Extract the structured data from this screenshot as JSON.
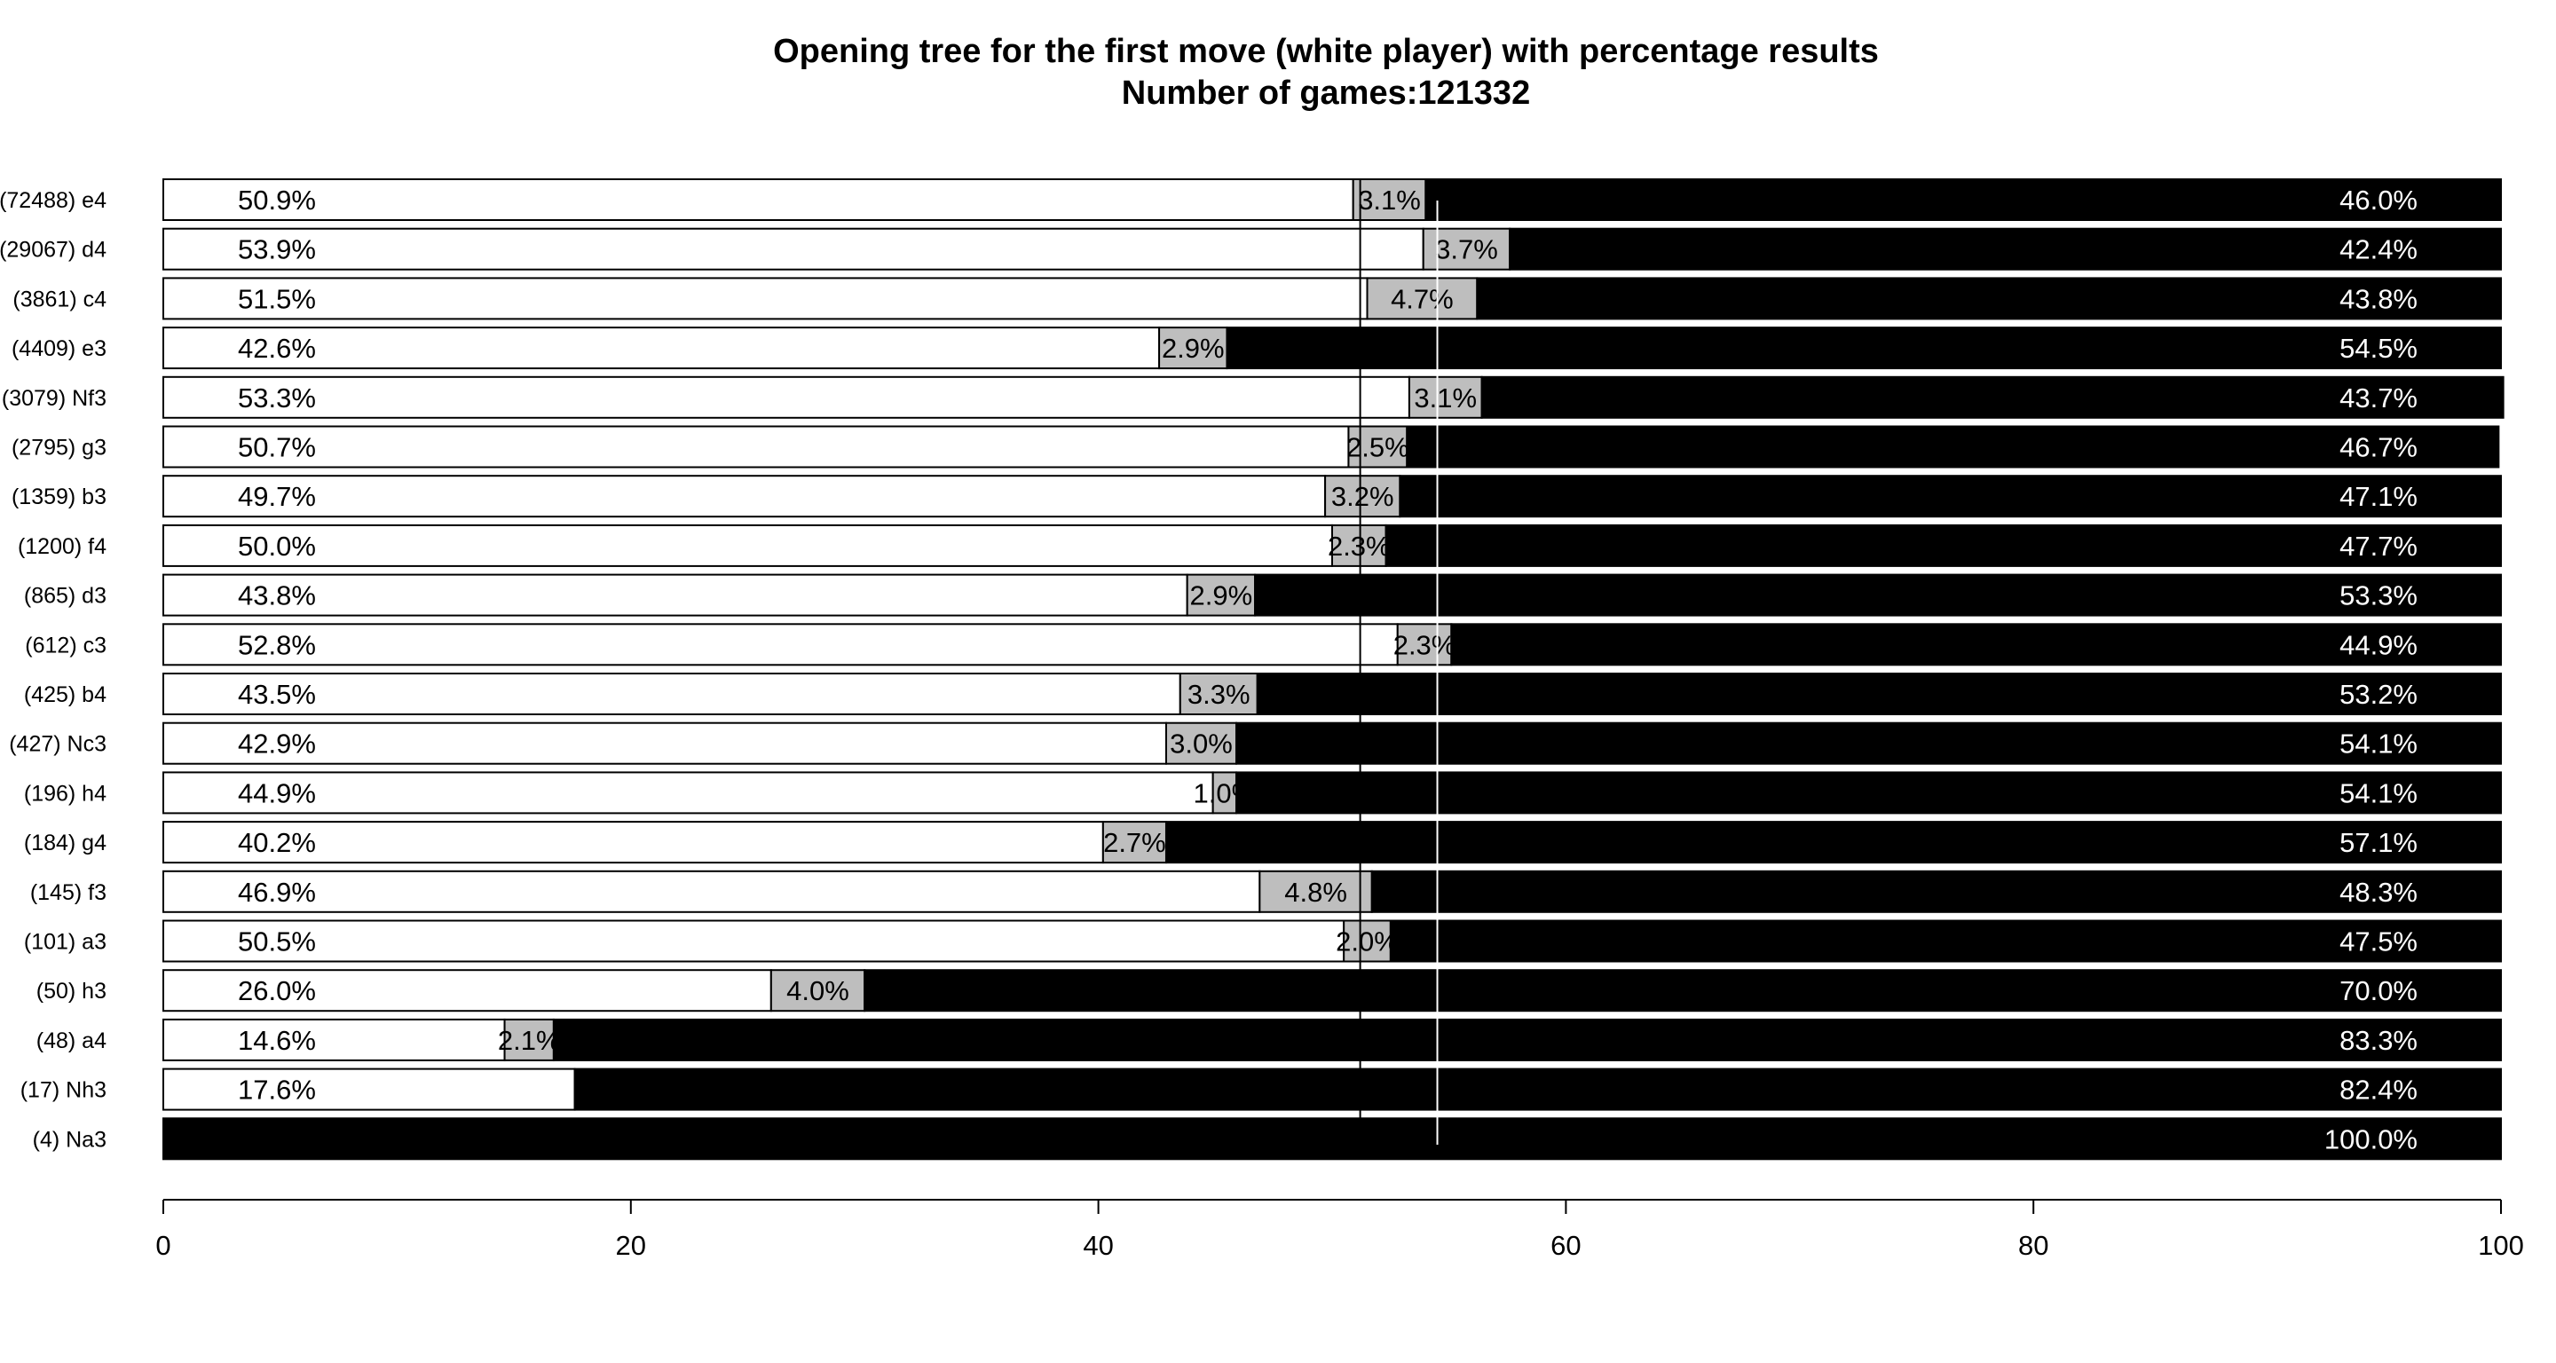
{
  "chart_data": {
    "type": "bar",
    "orientation": "horizontal",
    "stacked": true,
    "title": "Opening tree for the first move (white player) with percentage results",
    "subtitle": "Number of games:121332",
    "xlim": [
      0,
      100
    ],
    "xticks": [
      0,
      20,
      40,
      60,
      80,
      100
    ],
    "grid": false,
    "categories": [
      "(72488) e4",
      "(29067) d4",
      "(3861) c4",
      "(4409) e3",
      "(3079) Nf3",
      "(2795) g3",
      "(1359) b3",
      "(1200) f4",
      "(865) d3",
      "(612) c3",
      "(425) b4",
      "(427) Nc3",
      "(196) h4",
      "(184) g4",
      "(145) f3",
      "(101) a3",
      "(50) h3",
      "(48) a4",
      "(17) Nh3",
      "(4) Na3"
    ],
    "series": [
      {
        "color": "#ffffff",
        "values": [
          50.9,
          53.9,
          51.5,
          42.6,
          53.3,
          50.7,
          49.7,
          50.0,
          43.8,
          52.8,
          43.5,
          42.9,
          44.9,
          40.2,
          46.9,
          50.5,
          26.0,
          14.6,
          17.6,
          0
        ],
        "labels": [
          "50.9%",
          "53.9%",
          "51.5%",
          "42.6%",
          "53.3%",
          "50.7%",
          "49.7%",
          "50.0%",
          "43.8%",
          "52.8%",
          "43.5%",
          "42.9%",
          "44.9%",
          "40.2%",
          "46.9%",
          "50.5%",
          "26.0%",
          "14.6%",
          "17.6%",
          ""
        ]
      },
      {
        "color": "#bebebe",
        "values": [
          3.1,
          3.7,
          4.7,
          2.9,
          3.1,
          2.5,
          3.2,
          2.3,
          2.9,
          2.3,
          3.3,
          3.0,
          1.0,
          2.7,
          4.8,
          2.0,
          4.0,
          2.1,
          0,
          0
        ],
        "labels": [
          "3.1%",
          "3.7%",
          "4.7%",
          "2.9%",
          "3.1%",
          "2.5%",
          "3.2%",
          "2.3%",
          "2.9%",
          "2.3%",
          "3.3%",
          "3.0%",
          "1.0%",
          "2.7%",
          "4.8%",
          "2.0%",
          "4.0%",
          "2.1%",
          "",
          ""
        ]
      },
      {
        "color": "#000000",
        "values": [
          46.0,
          42.4,
          43.8,
          54.5,
          43.7,
          46.7,
          47.1,
          47.7,
          53.3,
          44.9,
          53.2,
          54.1,
          54.1,
          57.1,
          48.3,
          47.5,
          70.0,
          83.3,
          82.4,
          100.0
        ],
        "labels": [
          "46.0%",
          "42.4%",
          "43.8%",
          "54.5%",
          "43.7%",
          "46.7%",
          "47.1%",
          "47.7%",
          "53.3%",
          "44.9%",
          "53.2%",
          "54.1%",
          "54.1%",
          "57.1%",
          "48.3%",
          "47.5%",
          "70.0%",
          "83.3%",
          "82.4%",
          "100.0%"
        ]
      }
    ],
    "reference_lines": [
      {
        "x": 51.2,
        "color": "#000000"
      },
      {
        "x": 54.5,
        "color": "#ffffff"
      }
    ]
  }
}
